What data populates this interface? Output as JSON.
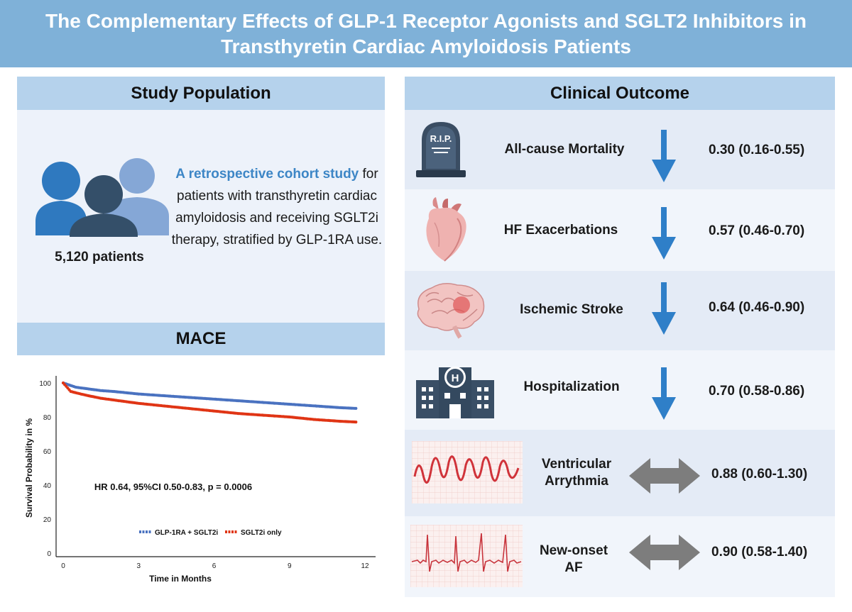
{
  "title": "The Complementary Effects of GLP-1 Receptor Agonists and SGLT2 Inhibitors in Transthyretin Cardiac Amyloidosis Patients",
  "colors": {
    "banner": "#7fb1d8",
    "header": "#b5d2ec",
    "arrow_down": "#2f7fc8",
    "arrow_both": "#7d7d7d",
    "series1": "#4a72c0",
    "series2": "#e03515"
  },
  "study_population": {
    "header": "Study Population",
    "icon": "people-group-icon",
    "highlight": "A retrospective cohort study",
    "description": "for patients with transthyretin cardiac amyloidosis and receiving SGLT2i therapy, stratified by GLP-1RA use.",
    "patients": "5,120 patients"
  },
  "mace": {
    "header": "MACE"
  },
  "clinical_outcome": {
    "header": "Clinical Outcome",
    "rows": [
      {
        "label": "All-cause Mortality",
        "value": "0.30 (0.16-0.55)",
        "icon": "tombstone-icon",
        "tombstone_text": "R.I.P.",
        "direction": "down"
      },
      {
        "label": "HF Exacerbations",
        "value": "0.57 (0.46-0.70)",
        "icon": "heart-icon",
        "direction": "down"
      },
      {
        "label": "Ischemic Stroke",
        "value": "0.64 (0.46-0.90)",
        "icon": "brain-icon",
        "direction": "down"
      },
      {
        "label": "Hospitalization",
        "value": "0.70 (0.58-0.86)",
        "icon": "hospital-icon",
        "direction": "down"
      },
      {
        "label": "Ventricular Arrythmia",
        "value": "0.88 (0.60-1.30)",
        "icon": "ecg-arrhythmia-icon",
        "direction": "both"
      },
      {
        "label": "New-onset AF",
        "value": "0.90 (0.58-1.40)",
        "icon": "ecg-af-icon",
        "direction": "both"
      }
    ]
  },
  "chart_data": {
    "type": "line",
    "title": "MACE",
    "xlabel": "Time in Months",
    "ylabel": "Survival Probability in %",
    "xlim": [
      0,
      12
    ],
    "ylim": [
      0,
      100
    ],
    "xticks": [
      0,
      3,
      6,
      9,
      12
    ],
    "yticks": [
      0,
      20,
      40,
      60,
      80,
      100
    ],
    "annotation": "HR 0.64, 95%CI 0.50-0.83, p = 0.0006",
    "legend_position": "bottom",
    "series": [
      {
        "name": "GLP-1RA + SGLT2i",
        "color": "#4a72c0",
        "x": [
          0,
          0.5,
          1,
          1.5,
          2,
          3,
          4,
          5,
          6,
          7,
          8,
          9,
          10,
          11,
          11.7
        ],
        "y": [
          100,
          97.5,
          96.5,
          95.5,
          95,
          93.5,
          92.5,
          91.5,
          90.5,
          89.5,
          88.5,
          87.5,
          86.5,
          85.5,
          85
        ]
      },
      {
        "name": "SGLT2i only",
        "color": "#e03515",
        "x": [
          0,
          0.3,
          0.7,
          1,
          1.5,
          2,
          3,
          4,
          5,
          6,
          7,
          8,
          9,
          10,
          11,
          11.7
        ],
        "y": [
          100,
          95,
          93.5,
          92.5,
          91,
          90,
          88,
          86.5,
          85,
          83.5,
          82,
          81,
          80,
          78.5,
          77.5,
          77
        ]
      }
    ]
  }
}
